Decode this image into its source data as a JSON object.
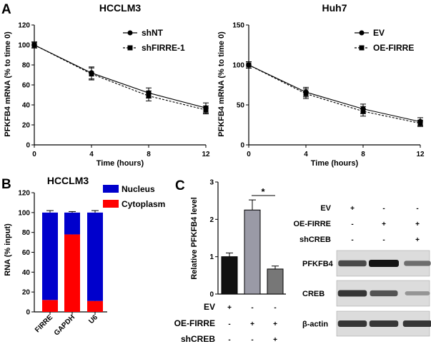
{
  "panels": {
    "A": "A",
    "B": "B",
    "C": "C"
  },
  "chart_data": [
    {
      "id": "a1",
      "type": "line",
      "title": "HCCLM3",
      "xlabel": "Time (hours)",
      "ylabel": "PFKFB4 mRNA (% to time 0)",
      "x": [
        0,
        4,
        8,
        12
      ],
      "xticks": [
        "0",
        "4",
        "8",
        "12"
      ],
      "xlim": [
        0,
        12
      ],
      "ylim": [
        0,
        120
      ],
      "yticks": [
        "0",
        "20",
        "40",
        "60",
        "80",
        "100",
        "120"
      ],
      "series": [
        {
          "name": "shNT",
          "values": [
            100,
            72,
            52,
            37
          ],
          "errors": [
            3,
            6,
            5,
            5
          ],
          "marker": "circle",
          "line": "solid"
        },
        {
          "name": "shFIRRE-1",
          "values": [
            100,
            71,
            49,
            35
          ],
          "errors": [
            3,
            6,
            5,
            4
          ],
          "marker": "square",
          "line": "dashed"
        }
      ],
      "legend": "top-right"
    },
    {
      "id": "a2",
      "type": "line",
      "title": "Huh7",
      "xlabel": "Time (hours)",
      "ylabel": "PFKFB4 mRNA (% to time 0)",
      "x": [
        0,
        4,
        8,
        12
      ],
      "xticks": [
        "0",
        "4",
        "8",
        "12"
      ],
      "xlim": [
        0,
        12
      ],
      "ylim": [
        0,
        150
      ],
      "yticks": [
        "0",
        "50",
        "100",
        "150"
      ],
      "series": [
        {
          "name": "EV",
          "values": [
            100,
            66,
            45,
            29
          ],
          "errors": [
            4,
            6,
            6,
            5
          ],
          "marker": "circle",
          "line": "solid"
        },
        {
          "name": "OE-FIRRE",
          "values": [
            100,
            64,
            42,
            27
          ],
          "errors": [
            4,
            6,
            6,
            4
          ],
          "marker": "square",
          "line": "dashed"
        }
      ],
      "legend": "top-right"
    },
    {
      "id": "b",
      "type": "bar",
      "stacked": true,
      "title": "HCCLM3",
      "ylabel": "RNA (% input)",
      "xlabel": "",
      "categories": [
        "FIRRE",
        "GAPDH",
        "U6"
      ],
      "ylim": [
        0,
        120
      ],
      "yticks": [
        "0",
        "20",
        "40",
        "60",
        "80",
        "100",
        "120"
      ],
      "series": [
        {
          "name": "Cytoplasm",
          "color": "#ff0000",
          "values": [
            12,
            78,
            11
          ],
          "errors": [
            1,
            2,
            1
          ]
        },
        {
          "name": "Nucleus",
          "color": "#0000cc",
          "values": [
            88,
            22,
            89
          ],
          "errors": [
            2,
            1,
            2
          ]
        }
      ],
      "legend_order": [
        "Nucleus",
        "Cytoplasm"
      ],
      "legend": "top-right"
    },
    {
      "id": "c",
      "type": "bar",
      "title": "",
      "ylabel": "Relative PFKFB4 level",
      "ylim": [
        0,
        3
      ],
      "yticks": [
        "0",
        "1",
        "2",
        "3"
      ],
      "values": [
        1.0,
        2.25,
        0.67
      ],
      "errors": [
        0.1,
        0.27,
        0.08
      ],
      "colors": [
        "#111111",
        "#9a9aa6",
        "#777777"
      ],
      "significance": "*",
      "rows": [
        {
          "label": "EV",
          "marks": [
            "+",
            "-",
            "-"
          ]
        },
        {
          "label": "OE-FIRRE",
          "marks": [
            "-",
            "+",
            "+"
          ]
        },
        {
          "label": "shCREB",
          "marks": [
            "-",
            "-",
            "+"
          ]
        }
      ]
    }
  ],
  "blot": {
    "rows": [
      {
        "label": "EV",
        "marks": [
          "+",
          "-",
          "-"
        ]
      },
      {
        "label": "OE-FIRRE",
        "marks": [
          "-",
          "+",
          "+"
        ]
      },
      {
        "label": "shCREB",
        "marks": [
          "-",
          "-",
          "+"
        ]
      }
    ],
    "bands": [
      {
        "label": "PFKFB4",
        "intensity": [
          0.75,
          1.0,
          0.55
        ]
      },
      {
        "label": "CREB",
        "intensity": [
          0.85,
          0.7,
          0.3
        ]
      },
      {
        "label": "β-actin",
        "intensity": [
          0.85,
          0.85,
          0.85
        ]
      }
    ]
  }
}
